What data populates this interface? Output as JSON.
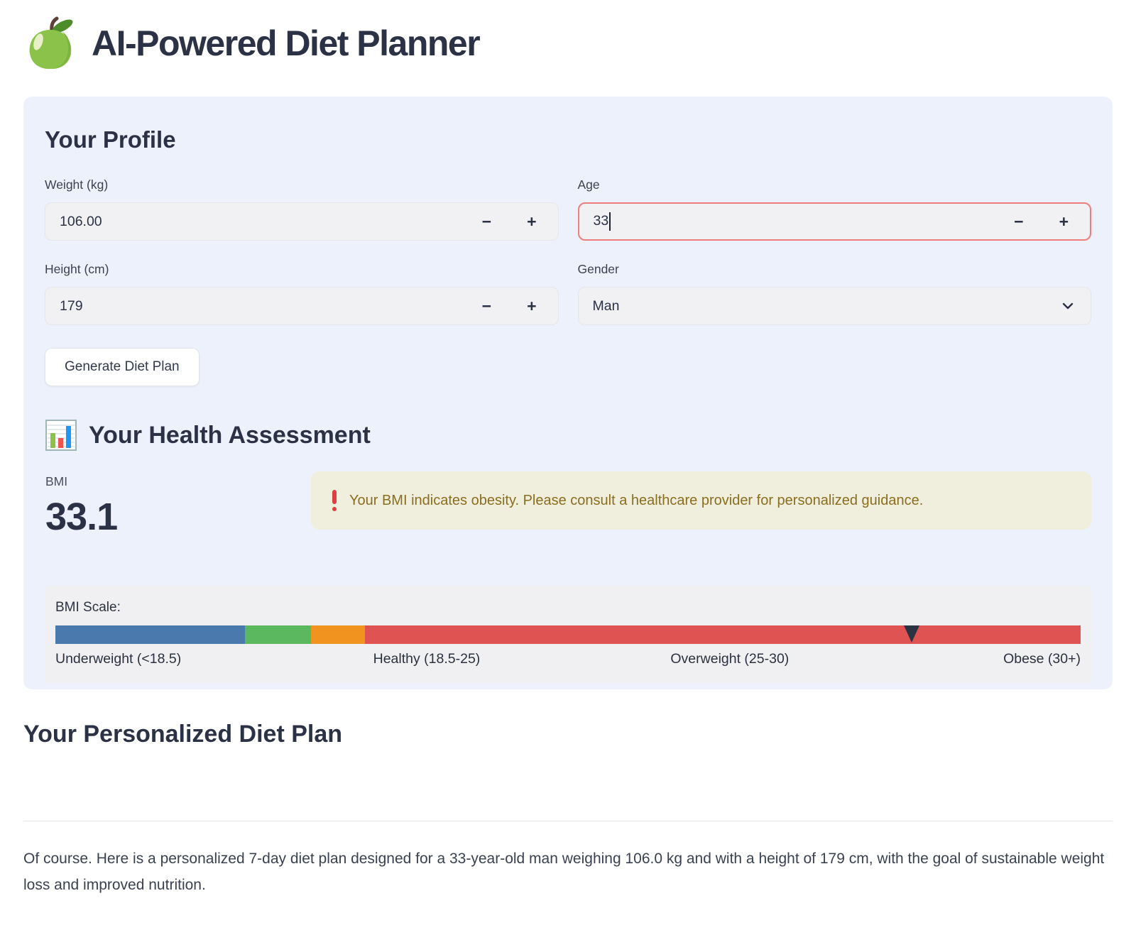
{
  "header": {
    "title": "AI-Powered Diet Planner"
  },
  "profile": {
    "heading": "Your Profile",
    "fields": {
      "weight": {
        "label": "Weight (kg)",
        "value": "106.00"
      },
      "age": {
        "label": "Age",
        "value": "33"
      },
      "height": {
        "label": "Height (cm)",
        "value": "179"
      },
      "gender": {
        "label": "Gender",
        "value": "Man"
      }
    },
    "stepper": {
      "minus": "−",
      "plus": "+"
    },
    "generate_button": "Generate Diet Plan"
  },
  "assessment": {
    "heading": "Your Health Assessment",
    "bmi_label": "BMI",
    "bmi_value": "33.1",
    "warning": "Your BMI indicates obesity. Please consult a healthcare provider for personalized guidance.",
    "scale": {
      "label": "BMI Scale:",
      "segments": [
        {
          "name": "underweight",
          "color": "#4a7aad",
          "width_pct": 18.5
        },
        {
          "name": "healthy",
          "color": "#5cb85f",
          "width_pct": 6.4
        },
        {
          "name": "overweight",
          "color": "#f1941f",
          "width_pct": 5.3
        },
        {
          "name": "obese",
          "color": "#e05353",
          "width_pct": 69.8
        }
      ],
      "labels": [
        {
          "text": "Underweight (<18.5)",
          "left_pct": 0
        },
        {
          "text": "Healthy (18.5-25)",
          "left_pct": 31
        },
        {
          "text": "Overweight (25-30)",
          "left_pct": 60
        },
        {
          "text": "Obese (30+)",
          "right": true
        }
      ],
      "marker_pct": 83.5,
      "marker_color": "#2b3342"
    }
  },
  "plan": {
    "heading": "Your Personalized Diet Plan",
    "text": "Of course. Here is a personalized 7-day diet plan designed for a 33-year-old man weighing 106.0 kg and with a height of 179 cm, with the goal of sustainable weight loss and improved nutrition."
  }
}
